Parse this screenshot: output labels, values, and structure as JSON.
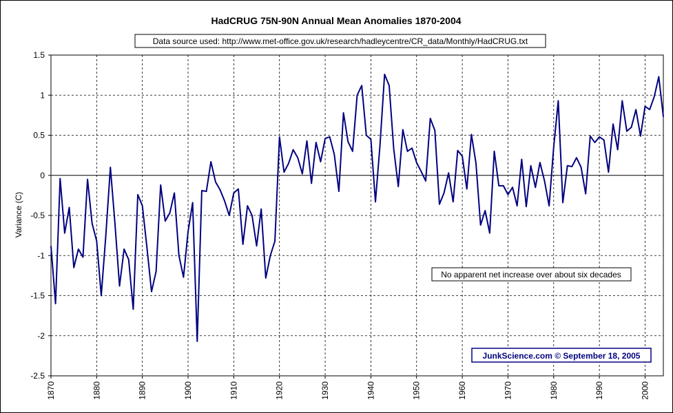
{
  "chart_data": {
    "type": "line",
    "title": "HadCRUG 75N-90N Annual Mean Anomalies 1870-2004",
    "source_note": "Data source used: http://www.met-office.gov.uk/research/hadleycentre/CR_data/Monthly/HadCRUG.txt",
    "annotation": "No apparent net increase over about six decades",
    "credit": "JunkScience.com © September 18, 2005",
    "xlabel": "",
    "ylabel": "Variance (C)",
    "xlim": [
      1870,
      2004
    ],
    "ylim": [
      -2.5,
      1.5
    ],
    "x_ticks": [
      "1870",
      "1880",
      "1890",
      "1900",
      "1910",
      "1920",
      "1930",
      "1940",
      "1950",
      "1960",
      "1970",
      "1980",
      "1990",
      "2000"
    ],
    "y_ticks": [
      "1.5",
      "1",
      "0.5",
      "0",
      "-0.5",
      "-1",
      "-1.5",
      "-2",
      "-2.5"
    ],
    "grid": true,
    "line_color": "#000080",
    "series": [
      {
        "x": [
          1870,
          1871,
          1872,
          1873,
          1874,
          1875,
          1876,
          1877,
          1878,
          1879,
          1880,
          1881,
          1882,
          1883,
          1884,
          1885,
          1886,
          1887,
          1888,
          1889,
          1890,
          1891,
          1892,
          1893,
          1894,
          1895,
          1896,
          1897,
          1898,
          1899,
          1900,
          1901,
          1902,
          1903,
          1904,
          1905,
          1906,
          1907,
          1908,
          1909,
          1910,
          1911,
          1912,
          1913,
          1914,
          1915,
          1916,
          1917,
          1918,
          1919,
          1920,
          1921,
          1922,
          1923,
          1924,
          1925,
          1926,
          1927,
          1928,
          1929,
          1930,
          1931,
          1932,
          1933,
          1934,
          1935,
          1936,
          1937,
          1938,
          1939,
          1940,
          1941,
          1942,
          1943,
          1944,
          1945,
          1946,
          1947,
          1948,
          1949,
          1950,
          1951,
          1952,
          1953,
          1954,
          1955,
          1956,
          1957,
          1958,
          1959,
          1960,
          1961,
          1962,
          1963,
          1964,
          1965,
          1966,
          1967,
          1968,
          1969,
          1970,
          1971,
          1972,
          1973,
          1974,
          1975,
          1976,
          1977,
          1978,
          1979,
          1980,
          1981,
          1982,
          1983,
          1984,
          1985,
          1986,
          1987,
          1988,
          1989,
          1990,
          1991,
          1992,
          1993,
          1994,
          1995,
          1996,
          1997,
          1998,
          1999,
          2000,
          2001,
          2002,
          2003,
          2004
        ],
        "values": [
          -0.88,
          -1.6,
          -0.04,
          -0.72,
          -0.4,
          -1.15,
          -0.92,
          -1.02,
          -0.05,
          -0.6,
          -0.82,
          -1.5,
          -0.75,
          0.1,
          -0.6,
          -1.38,
          -0.92,
          -1.05,
          -1.67,
          -0.24,
          -0.38,
          -0.9,
          -1.45,
          -1.2,
          -0.12,
          -0.57,
          -0.47,
          -0.22,
          -1.0,
          -1.27,
          -0.7,
          -0.34,
          -2.07,
          -0.19,
          -0.2,
          0.17,
          -0.08,
          -0.18,
          -0.32,
          -0.5,
          -0.22,
          -0.17,
          -0.86,
          -0.38,
          -0.5,
          -0.88,
          -0.42,
          -1.28,
          -1.0,
          -0.82,
          0.48,
          0.04,
          0.15,
          0.32,
          0.22,
          0.02,
          0.43,
          -0.1,
          0.41,
          0.17,
          0.46,
          0.48,
          0.26,
          -0.2,
          0.78,
          0.42,
          0.3,
          1.0,
          1.12,
          0.5,
          0.45,
          -0.33,
          0.38,
          1.26,
          1.12,
          0.33,
          -0.14,
          0.57,
          0.3,
          0.34,
          0.16,
          0.05,
          -0.07,
          0.71,
          0.56,
          -0.36,
          -0.22,
          0.03,
          -0.33,
          0.31,
          0.24,
          -0.17,
          0.51,
          0.15,
          -0.62,
          -0.44,
          -0.72,
          0.3,
          -0.13,
          -0.13,
          -0.24,
          -0.15,
          -0.38,
          0.2,
          -0.39,
          0.12,
          -0.15,
          0.16,
          -0.07,
          -0.38,
          0.35,
          0.93,
          -0.34,
          0.12,
          0.11,
          0.22,
          0.1,
          -0.23,
          0.49,
          0.41,
          0.48,
          0.44,
          0.04,
          0.64,
          0.32,
          0.93,
          0.55,
          0.6,
          0.82,
          0.49,
          0.86,
          0.82,
          0.98,
          1.23,
          0.73
        ]
      }
    ]
  }
}
